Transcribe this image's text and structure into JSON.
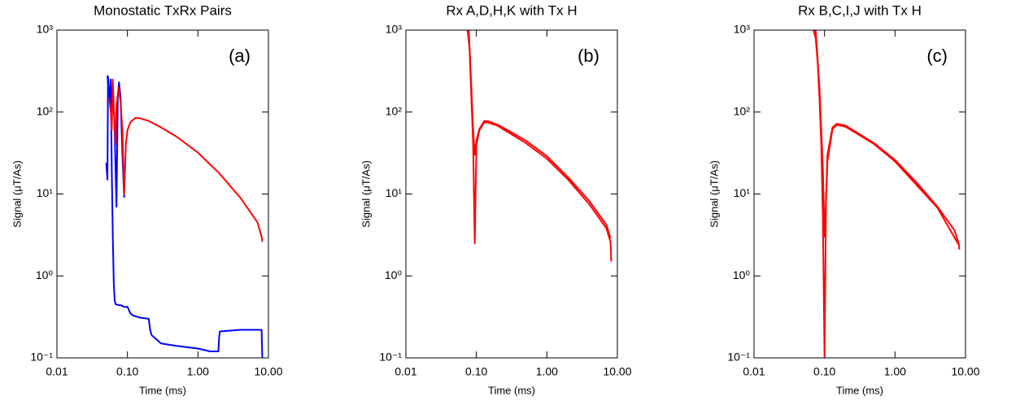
{
  "chart_data": [
    {
      "type": "line",
      "title": "Monostatic TxRx Pairs",
      "annotation": "(a)",
      "xlabel": "Time (ms)",
      "ylabel": "Signal (μT/As)",
      "xlog": true,
      "ylog": true,
      "xlim": [
        0.01,
        10
      ],
      "xticks": [
        0.01,
        {
          "value": 0.1,
          "label": "0.10"
        },
        {
          "value": 1,
          "label": "1.00"
        },
        {
          "value": 10,
          "label": "10.00"
        }
      ],
      "ylim": [
        0.1,
        1000
      ],
      "yticks": [
        {
          "value": 0.1,
          "label": "10⁻¹"
        },
        {
          "value": 1,
          "label": "10⁰"
        },
        {
          "value": 10,
          "label": "10¹"
        },
        {
          "value": 100,
          "label": "10²"
        },
        {
          "value": 1000,
          "label": "10³"
        }
      ],
      "series": [
        {
          "color": "#0000ff",
          "x": [
            0.05,
            0.052,
            0.053,
            0.055,
            0.057,
            0.058,
            0.06,
            0.062,
            0.064,
            0.066,
            0.068,
            0.07,
            0.075,
            0.08,
            0.085,
            0.09,
            0.1,
            0.11,
            0.12,
            0.15,
            0.2,
            0.21,
            0.22,
            0.3,
            0.5,
            1,
            1.5,
            1.95,
            2,
            2.05,
            4,
            7,
            8,
            8.2
          ],
          "values": [
            24,
            15,
            270,
            180,
            120,
            250,
            20,
            3,
            0.8,
            0.5,
            0.45,
            0.45,
            0.44,
            0.44,
            0.43,
            0.42,
            0.42,
            0.35,
            0.33,
            0.31,
            0.3,
            0.22,
            0.19,
            0.15,
            0.14,
            0.13,
            0.12,
            0.12,
            0.18,
            0.21,
            0.22,
            0.22,
            0.22,
            0.1
          ]
        },
        {
          "color": "#0000ff",
          "x": [
            0.052,
            0.055,
            0.06,
            0.065,
            0.07,
            0.073,
            0.076,
            0.08,
            0.085,
            0.09
          ],
          "values": [
            280,
            150,
            200,
            90,
            7,
            150,
            230,
            150,
            30,
            9
          ]
        },
        {
          "color": "#ff0000",
          "x": [
            0.055,
            0.058,
            0.06,
            0.062,
            0.065,
            0.068,
            0.07,
            0.075,
            0.08,
            0.085,
            0.09,
            0.095,
            0.1,
            0.11,
            0.13,
            0.15,
            0.2,
            0.3,
            0.5,
            1,
            2,
            4,
            7,
            8,
            8.2
          ],
          "values": [
            150,
            100,
            60,
            250,
            80,
            40,
            120,
            200,
            130,
            60,
            10,
            40,
            60,
            75,
            85,
            84,
            78,
            65,
            50,
            32,
            18,
            9,
            4.5,
            3,
            2.6
          ]
        }
      ]
    },
    {
      "type": "line",
      "title": "Rx A,D,H,K with Tx H",
      "annotation": "(b)",
      "xlabel": "Time (ms)",
      "ylabel": "Signal (μT/As)",
      "xlog": true,
      "ylog": true,
      "xlim": [
        0.01,
        10
      ],
      "xticks": [
        0.01,
        {
          "value": 0.1,
          "label": "0.10"
        },
        {
          "value": 1,
          "label": "1.00"
        },
        {
          "value": 10,
          "label": "10.00"
        }
      ],
      "ylim": [
        0.1,
        1000
      ],
      "yticks": [
        {
          "value": 0.1,
          "label": "10⁻¹"
        },
        {
          "value": 1,
          "label": "10⁰"
        },
        {
          "value": 10,
          "label": "10¹"
        },
        {
          "value": 100,
          "label": "10²"
        },
        {
          "value": 1000,
          "label": "10³"
        }
      ],
      "series": [
        {
          "color": "#ff0000",
          "x": [
            0.075,
            0.08,
            0.085,
            0.09,
            0.095,
            0.1,
            0.11,
            0.13,
            0.15,
            0.2,
            0.3,
            0.5,
            1,
            2,
            4,
            7,
            8,
            8.2
          ],
          "values": [
            1000,
            600,
            150,
            40,
            2.5,
            40,
            60,
            75,
            74,
            68,
            55,
            42,
            27,
            15,
            7.5,
            3.8,
            2.6,
            1.5
          ]
        },
        {
          "color": "#ff0000",
          "x": [
            0.078,
            0.085,
            0.09,
            0.095,
            0.1,
            0.11,
            0.13,
            0.15,
            0.2,
            0.3,
            0.5,
            1,
            2,
            4,
            7,
            8
          ],
          "values": [
            1000,
            200,
            60,
            30,
            45,
            62,
            78,
            77,
            70,
            58,
            45,
            29,
            16,
            8.2,
            4.2,
            2.9
          ]
        }
      ]
    },
    {
      "type": "line",
      "title": "Rx B,C,I,J with Tx H",
      "annotation": "(c)",
      "xlabel": "Time (ms)",
      "ylabel": "Signal (μT/As)",
      "xlog": true,
      "ylog": true,
      "xlim": [
        0.01,
        10
      ],
      "xticks": [
        0.01,
        {
          "value": 0.1,
          "label": "0.10"
        },
        {
          "value": 1,
          "label": "1.00"
        },
        {
          "value": 10,
          "label": "10.00"
        }
      ],
      "ylim": [
        0.1,
        1000
      ],
      "yticks": [
        {
          "value": 0.1,
          "label": "10⁻¹"
        },
        {
          "value": 1,
          "label": "10⁰"
        },
        {
          "value": 10,
          "label": "10¹"
        },
        {
          "value": 100,
          "label": "10²"
        },
        {
          "value": 1000,
          "label": "10³"
        }
      ],
      "series": [
        {
          "color": "#ff0000",
          "x": [
            0.07,
            0.075,
            0.08,
            0.085,
            0.09,
            0.095,
            0.1,
            0.105,
            0.11,
            0.13,
            0.15,
            0.2,
            0.3,
            0.5,
            1,
            2,
            4,
            7,
            8,
            8.2
          ],
          "values": [
            1000,
            800,
            400,
            150,
            40,
            5,
            0.1,
            8,
            30,
            65,
            72,
            68,
            55,
            42,
            26,
            14,
            7,
            3.6,
            2.5,
            2.1
          ]
        },
        {
          "color": "#ff0000",
          "x": [
            0.075,
            0.085,
            0.095,
            0.1,
            0.11,
            0.13,
            0.15,
            0.2,
            0.5,
            1,
            4,
            8
          ],
          "values": [
            1000,
            200,
            20,
            3,
            25,
            62,
            70,
            66,
            41,
            25,
            6.8,
            2.4
          ]
        }
      ]
    }
  ]
}
